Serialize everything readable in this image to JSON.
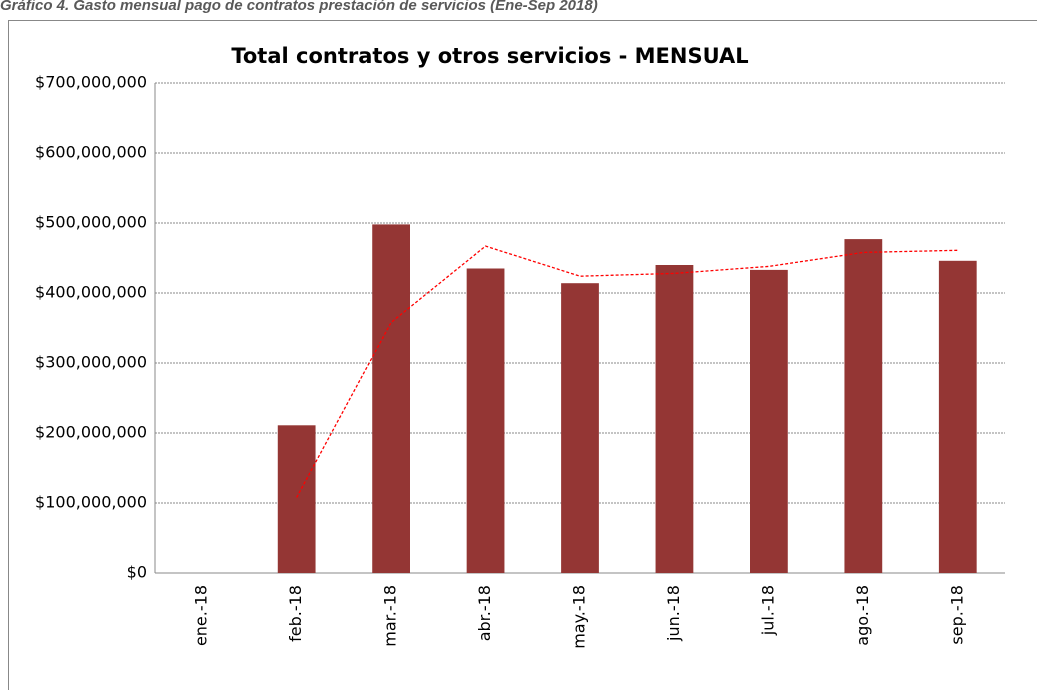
{
  "caption": "Gráfico 4. Gasto mensual pago de contratos prestación de servicios (Ene-Sep 2018)",
  "chart_data": {
    "type": "bar",
    "title": "Total contratos y otros servicios - MENSUAL",
    "categories": [
      "ene.-18",
      "feb.-18",
      "mar.-18",
      "abr.-18",
      "may.-18",
      "jun.-18",
      "jul.-18",
      "ago.-18",
      "sep.-18"
    ],
    "series": [
      {
        "type": "bar",
        "color": "#943634",
        "values": [
          0,
          211000000,
          498000000,
          435000000,
          414000000,
          440000000,
          433000000,
          477000000,
          446000000
        ]
      },
      {
        "type": "line",
        "color": "#ff0000",
        "dashed": true,
        "values": [
          null,
          108000000,
          358000000,
          467000000,
          424000000,
          428000000,
          438000000,
          458000000,
          461000000
        ]
      }
    ],
    "ylim": [
      0,
      700000000
    ],
    "yticks": [
      {
        "value": 0,
        "label": "$0"
      },
      {
        "value": 100000000,
        "label": "$100,000,000"
      },
      {
        "value": 200000000,
        "label": "$200,000,000"
      },
      {
        "value": 300000000,
        "label": "$300,000,000"
      },
      {
        "value": 400000000,
        "label": "$400,000,000"
      },
      {
        "value": 500000000,
        "label": "$500,000,000"
      },
      {
        "value": 600000000,
        "label": "$600,000,000"
      },
      {
        "value": 700000000,
        "label": "$700,000,000"
      }
    ],
    "grid": true
  }
}
